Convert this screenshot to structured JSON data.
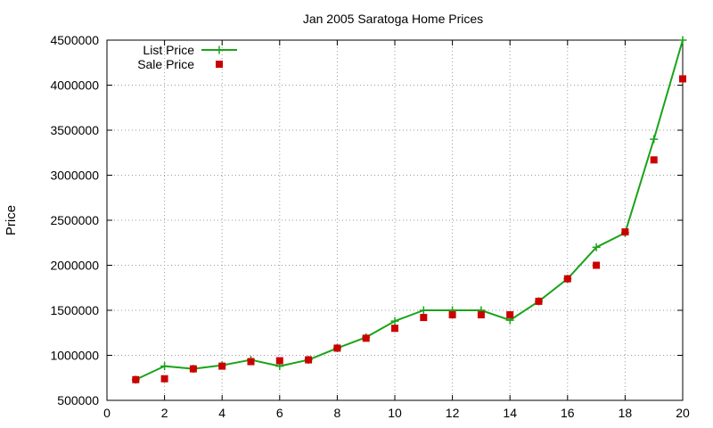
{
  "chart_data": {
    "type": "line",
    "title": "Jan 2005 Saratoga Home Prices",
    "xlabel": "",
    "ylabel": "Price",
    "xlim": [
      0,
      20
    ],
    "ylim": [
      500000,
      4500000
    ],
    "xticks": [
      0,
      2,
      4,
      6,
      8,
      10,
      12,
      14,
      16,
      18,
      20
    ],
    "yticks": [
      500000,
      1000000,
      1500000,
      2000000,
      2500000,
      3000000,
      3500000,
      4000000,
      4500000
    ],
    "grid": true,
    "legend_position": "top-left",
    "x": [
      1,
      2,
      3,
      4,
      5,
      6,
      7,
      8,
      9,
      10,
      11,
      12,
      13,
      14,
      15,
      16,
      17,
      18,
      19,
      20
    ],
    "series": [
      {
        "name": "List Price",
        "style": "line-with-plus-markers",
        "color": "#1aa31a",
        "values": [
          730000,
          880000,
          850000,
          890000,
          950000,
          880000,
          950000,
          1080000,
          1200000,
          1380000,
          1500000,
          1500000,
          1500000,
          1390000,
          1600000,
          1850000,
          2200000,
          2360000,
          3400000,
          4500000
        ]
      },
      {
        "name": "Sale Price",
        "style": "square-markers",
        "color": "#cc0000",
        "values": [
          730000,
          740000,
          850000,
          880000,
          930000,
          940000,
          950000,
          1080000,
          1190000,
          1300000,
          1420000,
          1450000,
          1450000,
          1450000,
          1600000,
          1850000,
          2000000,
          2370000,
          3170000,
          4070000
        ]
      }
    ]
  }
}
